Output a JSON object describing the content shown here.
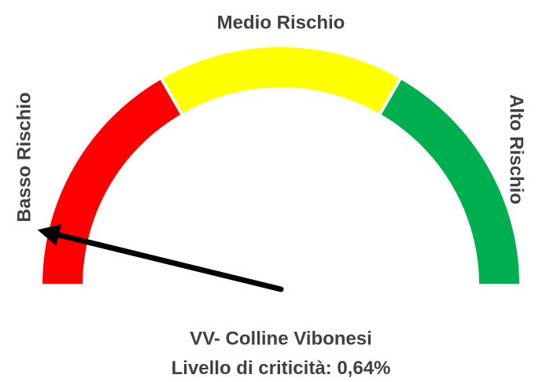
{
  "chart_data": {
    "type": "gauge",
    "range": [
      0,
      9
    ],
    "bands": [
      {
        "name": "Basso Rischio",
        "from": 0,
        "to": 3,
        "color": "#ff0000"
      },
      {
        "name": "Medio Rischio",
        "from": 3,
        "to": 6,
        "color": "#ffff00"
      },
      {
        "name": "Alto Rischio",
        "from": 6,
        "to": 9,
        "color": "#00b050"
      }
    ],
    "title": "VV- Colline Vibonesi",
    "value_caption": "Livello di criticità:",
    "value": 0.64,
    "value_label": "0,64%",
    "needle_color": "#000000"
  }
}
